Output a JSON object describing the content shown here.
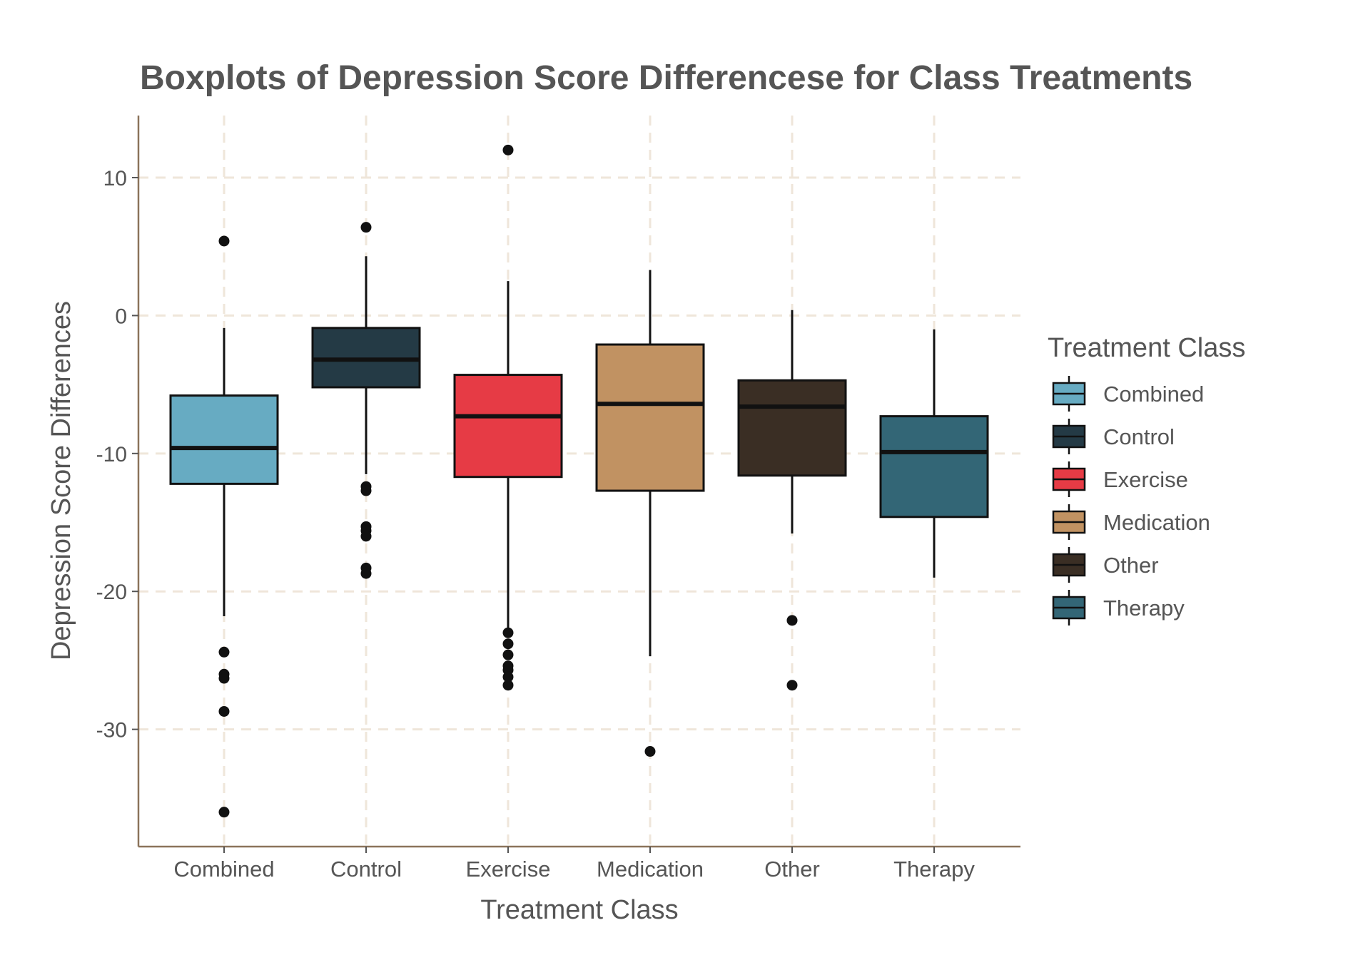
{
  "chart_data": {
    "type": "boxplot",
    "title": "Boxplots of Depression Score Differencese for Class Treatments",
    "xlabel": "Treatment Class",
    "ylabel": "Depression Score Differences",
    "ylim": [
      -38.5,
      14.5
    ],
    "yticks": [
      10,
      0,
      -10,
      -20,
      -30
    ],
    "ytick_labels": [
      "10",
      "0",
      "-10",
      "-20",
      "-30"
    ],
    "grid": true,
    "legend": {
      "title": "Treatment Class",
      "placement": "right"
    },
    "categories": [
      "Combined",
      "Control",
      "Exercise",
      "Medication",
      "Other",
      "Therapy"
    ],
    "series": [
      {
        "name": "Combined",
        "color": "#67abc2",
        "whisker_low": -21.8,
        "q1": -12.2,
        "median": -9.6,
        "q3": -5.8,
        "whisker_high": -0.9,
        "outliers": [
          5.4,
          -24.4,
          -26.0,
          -26.3,
          -28.7,
          -36.0
        ]
      },
      {
        "name": "Control",
        "color": "#243a45",
        "whisker_low": -11.5,
        "q1": -5.2,
        "median": -3.2,
        "q3": -0.9,
        "whisker_high": 4.3,
        "outliers": [
          6.4,
          -12.4,
          -12.7,
          -15.3,
          -15.6,
          -16.0,
          -18.3,
          -18.7
        ]
      },
      {
        "name": "Exercise",
        "color": "#e63b45",
        "whisker_low": -22.8,
        "q1": -11.7,
        "median": -7.3,
        "q3": -4.3,
        "whisker_high": 2.5,
        "outliers": [
          12.0,
          -23.0,
          -23.8,
          -24.6,
          -25.4,
          -25.7,
          -26.2,
          -26.8
        ]
      },
      {
        "name": "Medication",
        "color": "#c19262",
        "whisker_low": -24.7,
        "q1": -12.7,
        "median": -6.4,
        "q3": -2.1,
        "whisker_high": 3.3,
        "outliers": [
          -31.6
        ]
      },
      {
        "name": "Other",
        "color": "#3a2e24",
        "whisker_low": -15.8,
        "q1": -11.6,
        "median": -6.6,
        "q3": -4.7,
        "whisker_high": 0.4,
        "outliers": [
          -22.1,
          -26.8
        ]
      },
      {
        "name": "Therapy",
        "color": "#336676",
        "whisker_low": -19.0,
        "q1": -14.6,
        "median": -9.9,
        "q3": -7.3,
        "whisker_high": -1.0,
        "outliers": []
      }
    ]
  }
}
